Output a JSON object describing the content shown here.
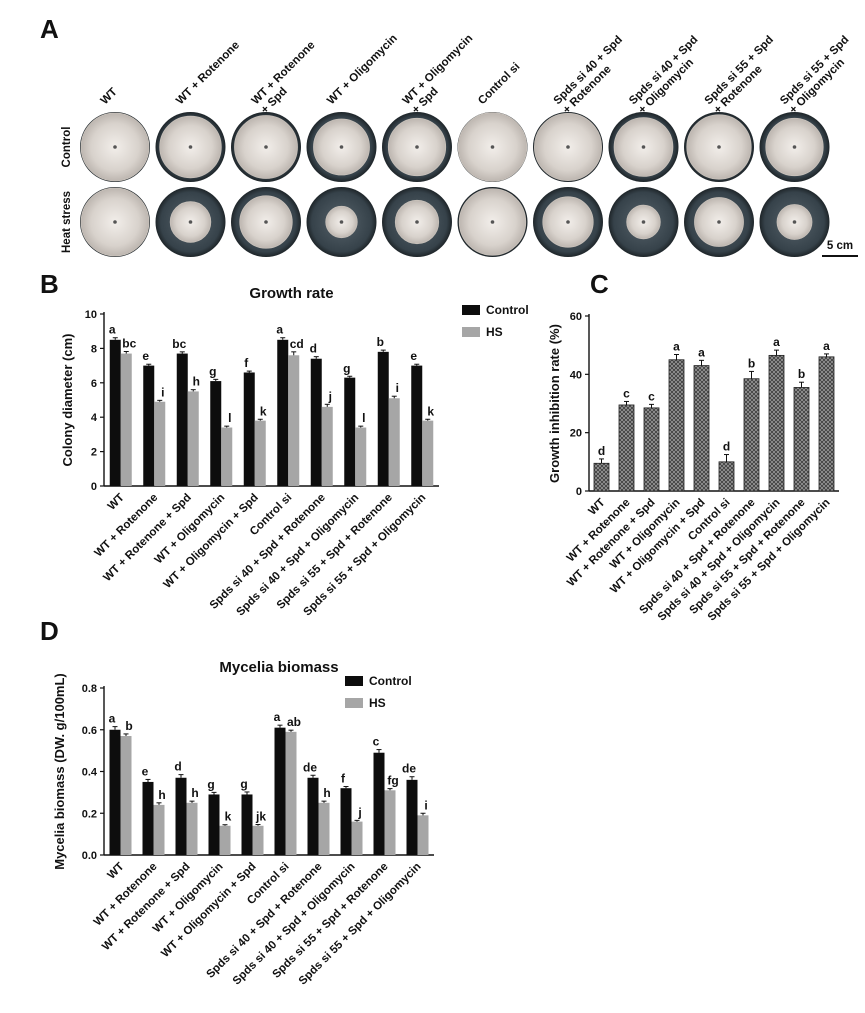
{
  "panel_labels": {
    "a": "A",
    "b": "B",
    "c": "C",
    "d": "D"
  },
  "photo_panel": {
    "col_labels": [
      "WT",
      "WT + Rotenone",
      "WT + Rotenone\n+ Spd",
      "WT + Oligomycin",
      "WT + Oligomycin\n+ Spd",
      "Control si",
      "Spds si 40 + Spd\n+ Rotenone",
      "Spds si 40 + Spd\n+ Oligomycin",
      "Spds si 55 + Spd\n+ Rotenone",
      "Spds si 55 + Spd\n+ Oligomycin"
    ],
    "row_labels": [
      "Control",
      "Heat  stress"
    ],
    "scale_bar": "5 cm",
    "control_colony_fraction": [
      0.97,
      0.88,
      0.9,
      0.8,
      0.82,
      0.98,
      0.96,
      0.84,
      0.92,
      0.82
    ],
    "heat_colony_fraction": [
      0.97,
      0.58,
      0.75,
      0.45,
      0.62,
      0.95,
      0.72,
      0.48,
      0.7,
      0.5
    ]
  },
  "colors": {
    "control": "#0d0d0d",
    "hs": "#a6a6a6",
    "hatch_fill": "#8a8a8a",
    "plate_bg": "#3e4a52",
    "colony": "#e2dcd6"
  },
  "legend": {
    "control": "Control",
    "hs": "HS"
  },
  "chart_data": [
    {
      "type": "bar",
      "title": "Growth rate",
      "ylabel": "Colony diameter (cm)",
      "ylim": [
        0,
        10
      ],
      "yticks": [
        0,
        2,
        4,
        6,
        8,
        10
      ],
      "categories": [
        "WT",
        "WT + Rotenone",
        "WT + Rotenone + Spd",
        "WT + Oligomycin",
        "WT + Oligomycin + Spd",
        "Control si",
        "Spds si 40 + Spd + Rotenone",
        "Spds si 40 + Spd + Oligomycin",
        "Spds si 55 + Spd + Rotenone",
        "Spds si 55 + Spd + Oligomycin"
      ],
      "series": [
        {
          "name": "Control",
          "values": [
            8.5,
            7.0,
            7.7,
            6.1,
            6.6,
            8.5,
            7.4,
            6.3,
            7.8,
            7.0
          ],
          "err": [
            0.12,
            0.08,
            0.1,
            0.1,
            0.08,
            0.12,
            0.12,
            0.08,
            0.1,
            0.08
          ],
          "labels": [
            "a",
            "e",
            "bc",
            "g",
            "f",
            "a",
            "d",
            "g",
            "b",
            "e"
          ]
        },
        {
          "name": "HS",
          "values": [
            7.7,
            4.9,
            5.5,
            3.4,
            3.8,
            7.6,
            4.6,
            3.4,
            5.1,
            3.8
          ],
          "err": [
            0.12,
            0.08,
            0.1,
            0.08,
            0.08,
            0.2,
            0.15,
            0.08,
            0.12,
            0.08
          ],
          "labels": [
            "bc",
            "i",
            "h",
            "l",
            "k",
            "cd",
            "j",
            "l",
            "i",
            "k"
          ]
        }
      ]
    },
    {
      "type": "bar",
      "title": "",
      "ylabel": "Growth inhibition rate (%)",
      "ylim": [
        0,
        60
      ],
      "yticks": [
        0,
        20,
        40,
        60
      ],
      "categories": [
        "WT",
        "WT + Rotenone",
        "WT + Rotenone + Spd",
        "WT + Oligomycin",
        "WT + Oligomycin + Spd",
        "Control si",
        "Spds si 40 + Spd + Rotenone",
        "Spds si 40 + Spd + Oligomycin",
        "Spds si 55 + Spd + Rotenone",
        "Spds si 55 + Spd + Oligomycin"
      ],
      "series": [
        {
          "values": [
            9.5,
            29.5,
            28.5,
            45,
            43,
            10,
            38.5,
            46.5,
            35.5,
            46
          ],
          "err": [
            1.5,
            1.2,
            1.2,
            1.8,
            1.8,
            2.5,
            2.5,
            1.8,
            1.8,
            1.0
          ],
          "labels": [
            "d",
            "c",
            "c",
            "a",
            "a",
            "d",
            "b",
            "a",
            "b",
            "a"
          ]
        }
      ]
    },
    {
      "type": "bar",
      "title": "Mycelia biomass",
      "ylabel": "Mycelia biomass (DW. g/100mL)",
      "ylim": [
        0,
        0.8
      ],
      "yticks": [
        0.0,
        0.2,
        0.4,
        0.6,
        0.8
      ],
      "categories": [
        "WT",
        "WT + Rotenone",
        "WT + Rotenone + Spd",
        "WT + Oligomycin",
        "WT + Oligomycin + Spd",
        "Control si",
        "Spds si 40 + Spd + Rotenone",
        "Spds si 40 + Spd + Oligomycin",
        "Spds si 55 + Spd + Rotenone",
        "Spds si 55 + Spd + Oligomycin"
      ],
      "series": [
        {
          "name": "Control",
          "values": [
            0.6,
            0.35,
            0.37,
            0.29,
            0.29,
            0.61,
            0.37,
            0.32,
            0.49,
            0.36
          ],
          "err": [
            0.015,
            0.012,
            0.015,
            0.01,
            0.012,
            0.012,
            0.012,
            0.008,
            0.015,
            0.015
          ],
          "labels": [
            "a",
            "e",
            "d",
            "g",
            "g",
            "a",
            "de",
            "f",
            "c",
            "de"
          ]
        },
        {
          "name": "HS",
          "values": [
            0.57,
            0.24,
            0.25,
            0.14,
            0.14,
            0.59,
            0.25,
            0.16,
            0.31,
            0.19
          ],
          "err": [
            0.01,
            0.01,
            0.008,
            0.005,
            0.006,
            0.008,
            0.008,
            0.006,
            0.008,
            0.01
          ],
          "labels": [
            "b",
            "h",
            "h",
            "k",
            "jk",
            "ab",
            "h",
            "j",
            "fg",
            "i"
          ]
        }
      ]
    }
  ]
}
